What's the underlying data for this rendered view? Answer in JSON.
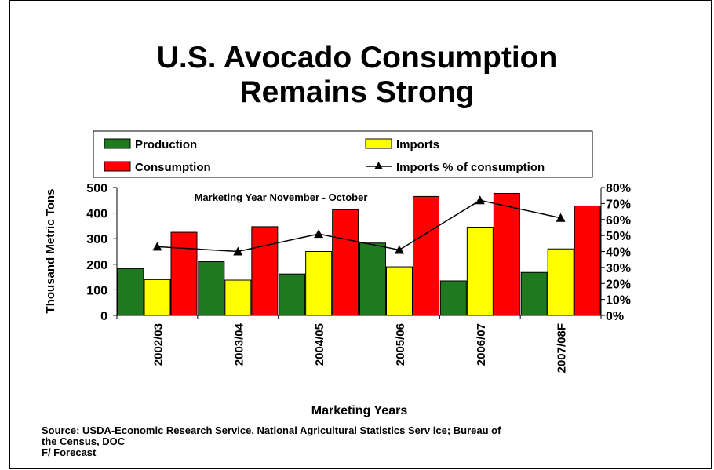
{
  "slide": {
    "title_line1": "U.S. Avocado Consumption",
    "title_line2": "Remains Strong",
    "source_line1": "Source: USDA-Economic Research Service, National Agricultural Statistics Serv ice; Bureau of",
    "source_line2": "the Census, DOC",
    "footnote": "F/ Forecast"
  },
  "chart_data": {
    "type": "bar",
    "title": "U.S. Avocado Consumption Remains Strong",
    "annotation": "Marketing Year November - October",
    "xlabel": "Marketing Years",
    "ylabel": "Thousand Metric Tons",
    "y2label": "",
    "categories": [
      "2002/03",
      "2003/04",
      "2004/05",
      "2005/06",
      "2006/07",
      "2007/08F"
    ],
    "ylim": [
      0,
      500
    ],
    "yticks": [
      0,
      100,
      200,
      300,
      400,
      500
    ],
    "y2lim": [
      0,
      80
    ],
    "y2ticks": [
      "0%",
      "10%",
      "20%",
      "30%",
      "40%",
      "50%",
      "60%",
      "70%",
      "80%"
    ],
    "y2tick_values": [
      0,
      10,
      20,
      30,
      40,
      50,
      60,
      70,
      80
    ],
    "legend_placement": "top",
    "grid": false,
    "series": [
      {
        "name": "Production",
        "kind": "bar",
        "color": "#1f7a1f",
        "values": [
          183,
          210,
          162,
          283,
          135,
          168
        ]
      },
      {
        "name": "Imports",
        "kind": "bar",
        "color": "#ffff00",
        "values": [
          140,
          138,
          250,
          190,
          345,
          260
        ]
      },
      {
        "name": "Consumption",
        "kind": "bar",
        "color": "#ff0000",
        "values": [
          325,
          347,
          413,
          465,
          477,
          428
        ]
      },
      {
        "name": "Imports % of consumption",
        "kind": "line",
        "axis": "right",
        "color": "#000000",
        "values": [
          43,
          40,
          51,
          41,
          72,
          61
        ]
      }
    ]
  }
}
